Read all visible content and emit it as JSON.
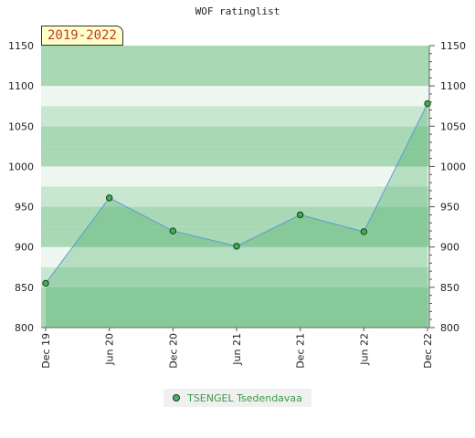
{
  "chart_data": {
    "type": "area",
    "title": "WOF ratinglist",
    "period_label": "2019-2022",
    "x": [
      "Dec 19",
      "Jun 20",
      "Dec 20",
      "Jun 21",
      "Dec 21",
      "Jun 22",
      "Dec 22"
    ],
    "series": [
      {
        "name": "TSENGEL Tsedendavaa",
        "values": [
          855,
          961,
          920,
          901,
          940,
          919,
          1078
        ]
      }
    ],
    "ylim": [
      800,
      1150
    ],
    "yticks": [
      800,
      850,
      900,
      950,
      1000,
      1050,
      1100,
      1150
    ],
    "y_axis_sides": "left-and-right",
    "grid": true,
    "legend_position": "bottom-center",
    "colors": {
      "line": "#5b9bd5",
      "area": "#4caf6a",
      "marker": "#3cb054",
      "band_light": "#eef7f0",
      "band_mid": "#c8e6d0",
      "band_dark": "#a8d8b4"
    }
  }
}
